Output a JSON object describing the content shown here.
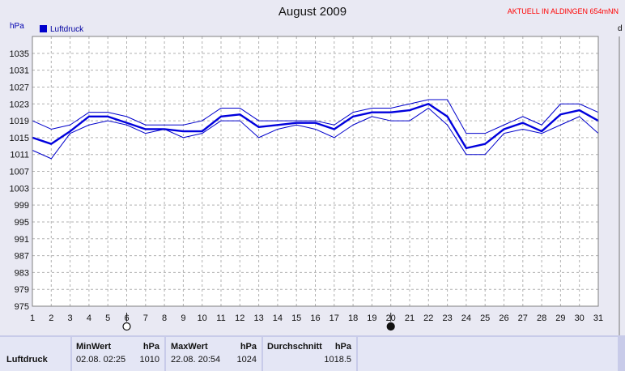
{
  "header": {
    "title": "August 2009",
    "notice": "AKTUELL IN ALDINGEN 654mNN",
    "unit_left": "hPa",
    "unit_right": "d"
  },
  "chart_data": {
    "type": "line",
    "x": [
      1,
      2,
      3,
      4,
      5,
      6,
      7,
      8,
      9,
      10,
      11,
      12,
      13,
      14,
      15,
      16,
      17,
      18,
      19,
      20,
      21,
      22,
      23,
      24,
      25,
      26,
      27,
      28,
      29,
      30,
      31
    ],
    "xlim": [
      1,
      31
    ],
    "ylim": [
      975,
      1039
    ],
    "yticks": [
      975,
      979,
      983,
      987,
      991,
      995,
      999,
      1003,
      1007,
      1011,
      1015,
      1019,
      1023,
      1027,
      1031,
      1035
    ],
    "ylabel": "hPa",
    "grid": true,
    "legend": {
      "position": "top-left",
      "entries": [
        "Luftdruck"
      ]
    },
    "moon_phases": [
      {
        "day": 6,
        "phase": "full"
      },
      {
        "day": 20,
        "phase": "new"
      }
    ],
    "series": [
      {
        "name": "Luftdruck",
        "role": "mean",
        "color": "#0000dd",
        "values": [
          1015,
          1013.5,
          1016.5,
          1020,
          1020,
          1018.5,
          1017,
          1017,
          1016.5,
          1016.5,
          1020,
          1020.5,
          1017.5,
          1018,
          1018.5,
          1018.5,
          1017,
          1020,
          1021,
          1021,
          1021.5,
          1023,
          1020,
          1012.5,
          1013.5,
          1017,
          1018.5,
          1016.5,
          1020.5,
          1021.5,
          1019
        ]
      },
      {
        "name": "Min",
        "role": "min",
        "color": "#0000cc",
        "values": [
          1012,
          1010,
          1016,
          1018,
          1019,
          1018,
          1016,
          1017,
          1015,
          1016,
          1019,
          1019,
          1015,
          1017,
          1018,
          1017,
          1015,
          1018,
          1020,
          1019,
          1019,
          1022,
          1018,
          1011,
          1011,
          1016,
          1017,
          1016,
          1018,
          1020,
          1016
        ]
      },
      {
        "name": "Max",
        "role": "max",
        "color": "#0000cc",
        "values": [
          1019,
          1017,
          1018,
          1021,
          1021,
          1020,
          1018,
          1018,
          1018,
          1019,
          1022,
          1022,
          1019,
          1019,
          1019,
          1019,
          1018,
          1021,
          1022,
          1022,
          1023,
          1024,
          1024,
          1016,
          1016,
          1018,
          1020,
          1018,
          1023,
          1023,
          1021
        ]
      }
    ]
  },
  "stats": {
    "row_label": "Luftdruck",
    "min_header": "MinWert",
    "min_unit": "hPa",
    "min_time": "02.08.  02:25",
    "min_value": "1010",
    "max_header": "MaxWert",
    "max_unit": "hPa",
    "max_time": "22.08.  20:54",
    "max_value": "1024",
    "avg_header": "Durchschnitt",
    "avg_unit": "hPa",
    "avg_value": "1018.5"
  }
}
